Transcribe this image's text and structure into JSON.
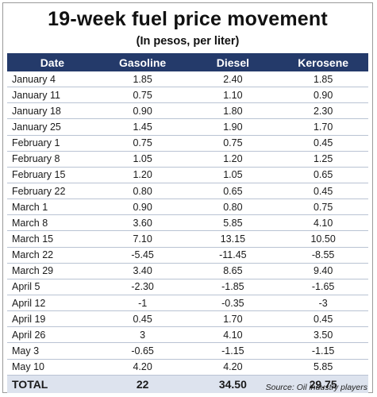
{
  "title": "19-week fuel price movement",
  "subtitle": "(In pesos, per liter)",
  "columns": [
    "Date",
    "Gasoline",
    "Diesel",
    "Kerosene"
  ],
  "header_color": "#243a6a",
  "source": "Source: Oil industry players",
  "chart_data": {
    "type": "table",
    "title": "19-week fuel price movement",
    "subtitle": "(In pesos, per liter)",
    "columns": [
      "Date",
      "Gasoline",
      "Diesel",
      "Kerosene"
    ],
    "rows": [
      [
        "January 4",
        "1.85",
        "2.40",
        "1.85"
      ],
      [
        "January 11",
        "0.75",
        "1.10",
        "0.90"
      ],
      [
        "January 18",
        "0.90",
        "1.80",
        "2.30"
      ],
      [
        "January 25",
        "1.45",
        "1.90",
        "1.70"
      ],
      [
        "February 1",
        "0.75",
        "0.75",
        "0.45"
      ],
      [
        "February 8",
        "1.05",
        "1.20",
        "1.25"
      ],
      [
        "February 15",
        "1.20",
        "1.05",
        "0.65"
      ],
      [
        "February 22",
        "0.80",
        "0.65",
        "0.45"
      ],
      [
        "March 1",
        "0.90",
        "0.80",
        "0.75"
      ],
      [
        "March 8",
        "3.60",
        "5.85",
        "4.10"
      ],
      [
        "March 15",
        "7.10",
        "13.15",
        "10.50"
      ],
      [
        "March 22",
        "-5.45",
        "-11.45",
        "-8.55"
      ],
      [
        "March 29",
        "3.40",
        "8.65",
        "9.40"
      ],
      [
        "April 5",
        "-2.30",
        "-1.85",
        "-1.65"
      ],
      [
        "April 12",
        "-1",
        "-0.35",
        "-3"
      ],
      [
        "April 19",
        "0.45",
        "1.70",
        "0.45"
      ],
      [
        "April 26",
        "3",
        "4.10",
        "3.50"
      ],
      [
        "May 3",
        "-0.65",
        "-1.15",
        "-1.15"
      ],
      [
        "May 10",
        "4.20",
        "4.20",
        "5.85"
      ]
    ],
    "total": [
      "TOTAL",
      "22",
      "34.50",
      "29.75"
    ]
  }
}
